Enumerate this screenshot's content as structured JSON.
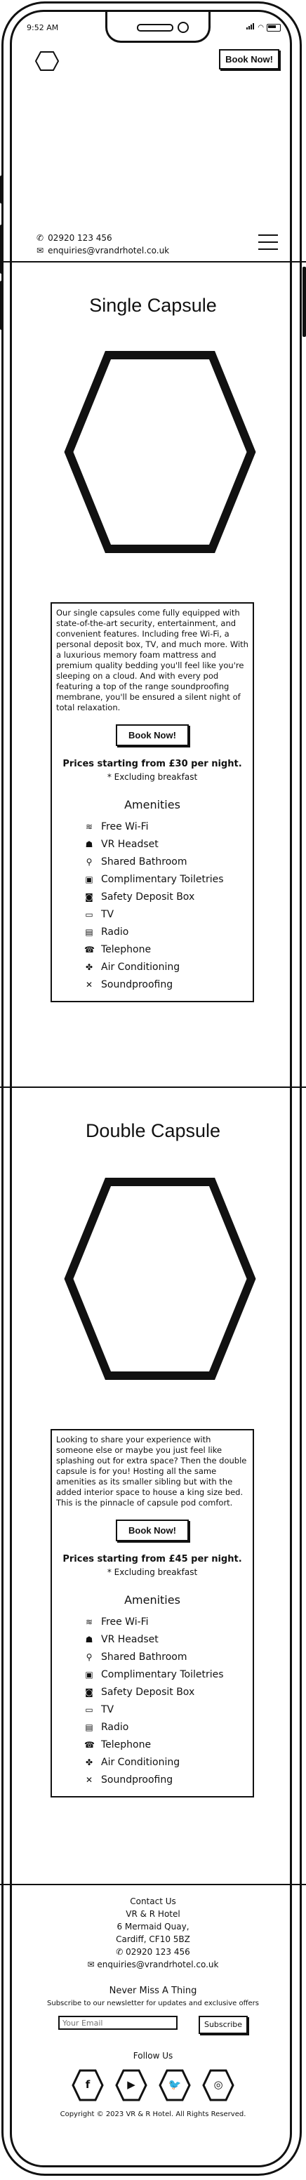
{
  "status_bar": {
    "time": "9:52 AM"
  },
  "header": {
    "book_label": "Book Now!",
    "phone": "02920 123 456",
    "email": "enquiries@vrandrhotel.co.uk"
  },
  "rooms": [
    {
      "title": "Single Capsule",
      "description": "Our single capsules come fully equipped with state-of-the-art security, entertainment, and convenient features. Including free Wi-Fi, a personal deposit box, TV, and much more. With a luxurious memory foam mattress and premium quality bedding you'll feel like you're sleeping on a cloud. And with every pod featuring a top of the range soundproofing membrane, you'll be ensured a silent night of total relaxation.",
      "book_label": "Book Now!",
      "price": "Prices starting from £30 per night.",
      "note": "* Excluding breakfast",
      "amenities_title": "Amenities",
      "amenities": [
        "Free Wi-Fi",
        "VR Headset",
        "Shared Bathroom",
        "Complimentary Toiletries",
        "Safety Deposit Box",
        "TV",
        "Radio",
        "Telephone",
        "Air Conditioning",
        "Soundproofing"
      ]
    },
    {
      "title": "Double Capsule",
      "description": "Looking to share your experience with someone else or maybe you just feel like splashing out for extra space? Then the double capsule is for you! Hosting all the same amenities as its smaller sibling but with the added interior space to house a king size bed. This is the pinnacle of capsule pod comfort.",
      "book_label": "Book Now!",
      "price": "Prices starting from £45 per night.",
      "note": "* Excluding breakfast",
      "amenities_title": "Amenities",
      "amenities": [
        "Free Wi-Fi",
        "VR Headset",
        "Shared Bathroom",
        "Complimentary Toiletries",
        "Safety Deposit Box",
        "TV",
        "Radio",
        "Telephone",
        "Air Conditioning",
        "Soundproofing"
      ]
    }
  ],
  "amenity_icons": [
    "wifi-icon",
    "vr-headset-icon",
    "shower-icon",
    "toiletries-icon",
    "safe-icon",
    "tv-icon",
    "radio-icon",
    "telephone-icon",
    "fan-icon",
    "mute-icon"
  ],
  "footer": {
    "contact_title": "Contact Us",
    "address": [
      "VR & R Hotel",
      "6 Mermaid Quay,",
      "Cardiff, CF10 5BZ"
    ],
    "phone": "02920 123 456",
    "email": "enquiries@vrandrhotel.co.uk",
    "newsletter_title": "Never Miss A Thing",
    "newsletter_text": "Subscribe to our newsletter for updates and exclusive offers",
    "email_placeholder": "Your Email",
    "subscribe_label": "Subscribe",
    "follow_title": "Follow Us",
    "socials": [
      "f",
      "▶",
      "🐦",
      "◎"
    ],
    "copyright": "Copyright © 2023 VR & R Hotel. All Rights Reserved."
  }
}
